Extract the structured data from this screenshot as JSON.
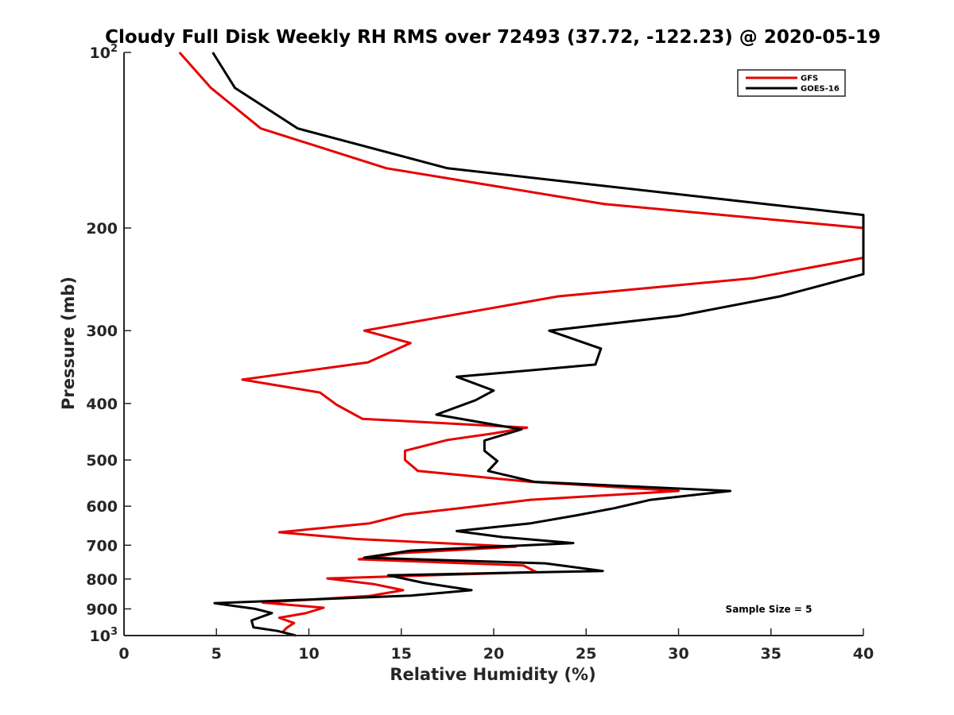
{
  "chart_data": {
    "type": "line",
    "title": "Cloudy Full Disk Weekly RH RMS over 72493 (37.72, -122.23) @ 2020-05-19",
    "xlabel": "Relative Humidity (%)",
    "ylabel": "Pressure (mb)",
    "xlim": [
      0,
      40
    ],
    "ylim": [
      1000,
      100
    ],
    "y_scale": "log",
    "y_reversed": true,
    "grid": false,
    "legend_position": "top-right",
    "x_ticks": [
      "0",
      "5",
      "10",
      "15",
      "20",
      "25",
      "30",
      "35",
      "40"
    ],
    "y_ticks": [
      {
        "value": 100,
        "base": "10",
        "sup": "2"
      },
      {
        "value": 200,
        "label": "200"
      },
      {
        "value": 300,
        "label": "300"
      },
      {
        "value": 400,
        "label": "400"
      },
      {
        "value": 500,
        "label": "500"
      },
      {
        "value": 600,
        "label": "600"
      },
      {
        "value": 700,
        "label": "700"
      },
      {
        "value": 800,
        "label": "800"
      },
      {
        "value": 900,
        "label": "900"
      },
      {
        "value": 1000,
        "base": "10",
        "sup": "3"
      }
    ],
    "annotation": "Sample Size = 5",
    "series": [
      {
        "name": "GFS",
        "color": "#e60000",
        "points": [
          [
            3.0,
            100
          ],
          [
            4.7,
            115
          ],
          [
            7.4,
            135
          ],
          [
            14.2,
            158
          ],
          [
            26.0,
            182
          ],
          [
            40.0,
            200
          ],
          [
            40.0,
            225
          ],
          [
            34.0,
            244
          ],
          [
            23.5,
            262
          ],
          [
            13.0,
            300
          ],
          [
            15.5,
            315
          ],
          [
            13.2,
            340
          ],
          [
            6.4,
            364
          ],
          [
            10.6,
            383
          ],
          [
            11.5,
            402
          ],
          [
            12.9,
            425
          ],
          [
            21.8,
            440
          ],
          [
            20.0,
            450
          ],
          [
            17.5,
            462
          ],
          [
            15.2,
            482
          ],
          [
            15.2,
            500
          ],
          [
            15.9,
            522
          ],
          [
            22.0,
            545
          ],
          [
            30.0,
            565
          ],
          [
            22.0,
            585
          ],
          [
            18.7,
            602
          ],
          [
            15.2,
            620
          ],
          [
            13.3,
            642
          ],
          [
            8.4,
            665
          ],
          [
            12.6,
            683
          ],
          [
            21.2,
            704
          ],
          [
            15.0,
            722
          ],
          [
            12.7,
            740
          ],
          [
            21.6,
            758
          ],
          [
            22.3,
            778
          ],
          [
            11.0,
            798
          ],
          [
            13.5,
            816
          ],
          [
            15.1,
            836
          ],
          [
            13.3,
            855
          ],
          [
            7.5,
            878
          ],
          [
            10.8,
            896
          ],
          [
            9.8,
            916
          ],
          [
            8.4,
            932
          ],
          [
            9.2,
            952
          ],
          [
            8.8,
            970
          ],
          [
            8.6,
            985
          ]
        ]
      },
      {
        "name": "GOES-16",
        "color": "#000000",
        "points": [
          [
            4.8,
            100
          ],
          [
            6.0,
            115
          ],
          [
            9.4,
            135
          ],
          [
            17.5,
            158
          ],
          [
            32.0,
            178
          ],
          [
            40.0,
            190
          ],
          [
            40.0,
            240
          ],
          [
            35.5,
            262
          ],
          [
            30.0,
            283
          ],
          [
            23.0,
            300
          ],
          [
            25.8,
            322
          ],
          [
            25.5,
            343
          ],
          [
            18.0,
            360
          ],
          [
            20.0,
            380
          ],
          [
            19.0,
            395
          ],
          [
            16.9,
            418
          ],
          [
            21.5,
            443
          ],
          [
            19.5,
            463
          ],
          [
            19.5,
            482
          ],
          [
            20.2,
            502
          ],
          [
            19.7,
            522
          ],
          [
            22.2,
            545
          ],
          [
            32.8,
            565
          ],
          [
            28.5,
            585
          ],
          [
            26.5,
            605
          ],
          [
            24.5,
            622
          ],
          [
            22.0,
            642
          ],
          [
            18.0,
            662
          ],
          [
            20.5,
            678
          ],
          [
            24.3,
            694
          ],
          [
            15.5,
            715
          ],
          [
            13.0,
            735
          ],
          [
            22.8,
            752
          ],
          [
            25.9,
            775
          ],
          [
            14.3,
            788
          ],
          [
            16.2,
            812
          ],
          [
            18.8,
            836
          ],
          [
            15.5,
            854
          ],
          [
            4.9,
            880
          ],
          [
            7.1,
            900
          ],
          [
            8.0,
            915
          ],
          [
            6.9,
            942
          ],
          [
            7.0,
            968
          ],
          [
            8.3,
            982
          ],
          [
            9.3,
            1000
          ]
        ]
      }
    ]
  }
}
